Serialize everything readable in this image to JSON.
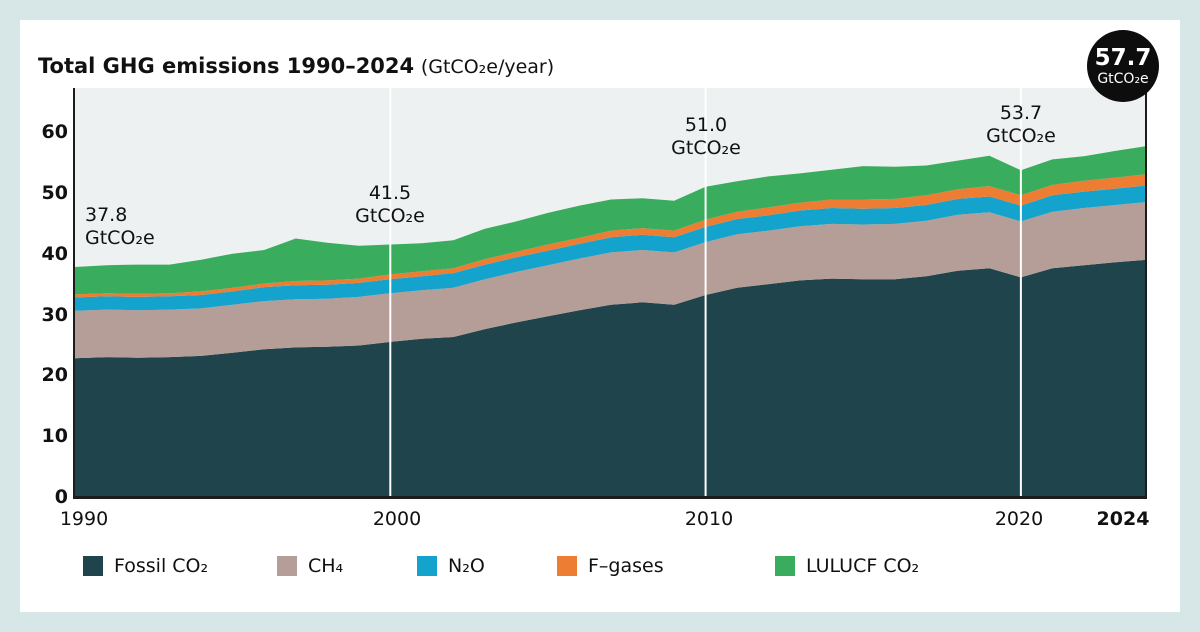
{
  "title": {
    "bold": "Total GHG emissions 1990–2024",
    "unit": "(GtCO₂e/year)"
  },
  "badge": {
    "value": "57.7",
    "unit": "GtCO₂e"
  },
  "y_axis": {
    "ticks": [
      0,
      10,
      20,
      30,
      40,
      50,
      60
    ]
  },
  "x_axis": {
    "ticks": [
      "1990",
      "2000",
      "2010",
      "2020",
      "2024"
    ]
  },
  "annotations": [
    {
      "year": 1990,
      "value": "37.8",
      "unit": "GtCO₂e"
    },
    {
      "year": 2000,
      "value": "41.5",
      "unit": "GtCO₂e"
    },
    {
      "year": 2010,
      "value": "51.0",
      "unit": "GtCO₂e"
    },
    {
      "year": 2020,
      "value": "53.7",
      "unit": "GtCO₂e"
    }
  ],
  "legend": [
    {
      "label": "Fossil CO₂",
      "color": "#1f444c"
    },
    {
      "label": "CH₄",
      "color": "#b49e97"
    },
    {
      "label": "N₂O",
      "color": "#14a3cc"
    },
    {
      "label": "F–gases",
      "color": "#ec7d33"
    },
    {
      "label": "LULUCF CO₂",
      "color": "#3aac5d"
    }
  ],
  "colors": {
    "page_background": "#d7e7e7",
    "card_background": "#ffffff",
    "plot_background": "#edf1f1",
    "gridline": "#ffffff",
    "axis": "#1c1c1c",
    "badge_background": "#0d0d0d",
    "text": "#111111"
  },
  "chart_data": {
    "type": "area",
    "stacked": true,
    "title": "Total GHG emissions 1990–2024 (GtCO₂e/year)",
    "ylabel": "GtCO₂e/year",
    "ylim": [
      0,
      60
    ],
    "grid_x_years": [
      2000,
      2010,
      2020
    ],
    "legend_position": "bottom",
    "x": [
      1990,
      1991,
      1992,
      1993,
      1994,
      1995,
      1996,
      1997,
      1998,
      1999,
      2000,
      2001,
      2002,
      2003,
      2004,
      2005,
      2006,
      2007,
      2008,
      2009,
      2010,
      2011,
      2012,
      2013,
      2014,
      2015,
      2016,
      2017,
      2018,
      2019,
      2020,
      2021,
      2022,
      2023,
      2024
    ],
    "series": [
      {
        "name": "Fossil CO₂",
        "color": "#1f444c",
        "values": [
          22.8,
          23.0,
          22.9,
          23.0,
          23.2,
          23.7,
          24.3,
          24.6,
          24.7,
          24.9,
          25.5,
          26.0,
          26.3,
          27.6,
          28.7,
          29.7,
          30.7,
          31.6,
          32.0,
          31.6,
          33.2,
          34.4,
          35.0,
          35.6,
          35.9,
          35.8,
          35.8,
          36.3,
          37.2,
          37.6,
          36.1,
          37.6,
          38.1,
          38.6,
          39.0
        ]
      },
      {
        "name": "CH₄",
        "color": "#b49e97",
        "values": [
          7.8,
          7.8,
          7.8,
          7.8,
          7.8,
          7.9,
          7.9,
          7.9,
          7.9,
          8.0,
          8.0,
          8.0,
          8.1,
          8.2,
          8.3,
          8.4,
          8.5,
          8.6,
          8.6,
          8.6,
          8.7,
          8.8,
          8.8,
          8.9,
          9.0,
          9.0,
          9.1,
          9.1,
          9.2,
          9.2,
          9.2,
          9.3,
          9.4,
          9.4,
          9.5
        ]
      },
      {
        "name": "N₂O",
        "color": "#14a3cc",
        "values": [
          2.2,
          2.2,
          2.2,
          2.2,
          2.2,
          2.2,
          2.3,
          2.3,
          2.3,
          2.3,
          2.3,
          2.3,
          2.4,
          2.4,
          2.4,
          2.4,
          2.4,
          2.5,
          2.5,
          2.5,
          2.5,
          2.5,
          2.5,
          2.6,
          2.6,
          2.6,
          2.6,
          2.6,
          2.6,
          2.6,
          2.6,
          2.7,
          2.7,
          2.7,
          2.7
        ]
      },
      {
        "name": "F–gases",
        "color": "#ec7d33",
        "values": [
          0.5,
          0.5,
          0.5,
          0.5,
          0.6,
          0.6,
          0.6,
          0.7,
          0.7,
          0.7,
          0.8,
          0.8,
          0.8,
          0.9,
          0.9,
          1.0,
          1.0,
          1.1,
          1.1,
          1.1,
          1.2,
          1.2,
          1.3,
          1.3,
          1.4,
          1.5,
          1.5,
          1.6,
          1.6,
          1.7,
          1.7,
          1.7,
          1.8,
          1.8,
          1.9
        ]
      },
      {
        "name": "LULUCF CO₂",
        "color": "#3aac5d",
        "values": [
          4.5,
          4.6,
          4.8,
          4.7,
          5.2,
          5.6,
          5.5,
          7.0,
          6.2,
          5.4,
          4.9,
          4.6,
          4.6,
          5.0,
          5.0,
          5.2,
          5.3,
          5.1,
          4.9,
          4.9,
          5.4,
          5.0,
          5.1,
          4.8,
          4.9,
          5.5,
          5.3,
          4.9,
          4.7,
          5.0,
          4.1,
          4.2,
          4.0,
          4.4,
          4.6
        ]
      }
    ],
    "labeled_totals": [
      {
        "year": 1990,
        "total": 37.8
      },
      {
        "year": 2000,
        "total": 41.5
      },
      {
        "year": 2010,
        "total": 51.0
      },
      {
        "year": 2020,
        "total": 53.7
      },
      {
        "year": 2024,
        "total": 57.7
      }
    ]
  }
}
